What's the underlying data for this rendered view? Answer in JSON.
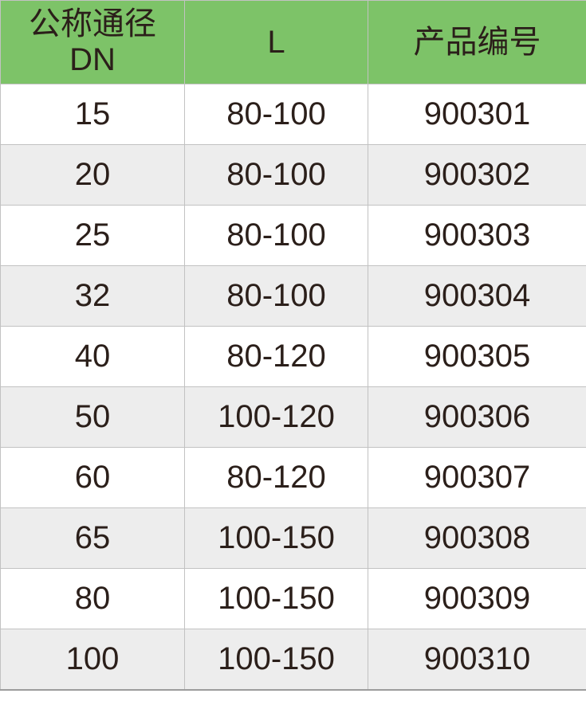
{
  "chart_data": {
    "type": "table",
    "header": {
      "col1_line1": "公称通径",
      "col1_line2": "DN",
      "col2": "L",
      "col3": "产品编号"
    },
    "columns": [
      "公称通径 DN",
      "L",
      "产品编号"
    ],
    "rows": [
      [
        "15",
        "80-100",
        "900301"
      ],
      [
        "20",
        "80-100",
        "900302"
      ],
      [
        "25",
        "80-100",
        "900303"
      ],
      [
        "32",
        "80-100",
        "900304"
      ],
      [
        "40",
        "80-120",
        "900305"
      ],
      [
        "50",
        "100-120",
        "900306"
      ],
      [
        "60",
        "80-120",
        "900307"
      ],
      [
        "65",
        "100-150",
        "900308"
      ],
      [
        "80",
        "100-150",
        "900309"
      ],
      [
        "100",
        "100-150",
        "900310"
      ]
    ]
  },
  "colors": {
    "header_bg": "#7dc368",
    "row_stripe_bg": "#ededed",
    "row_bg": "#ffffff",
    "border": "#c2c2c2",
    "text": "#2b1f1a"
  }
}
